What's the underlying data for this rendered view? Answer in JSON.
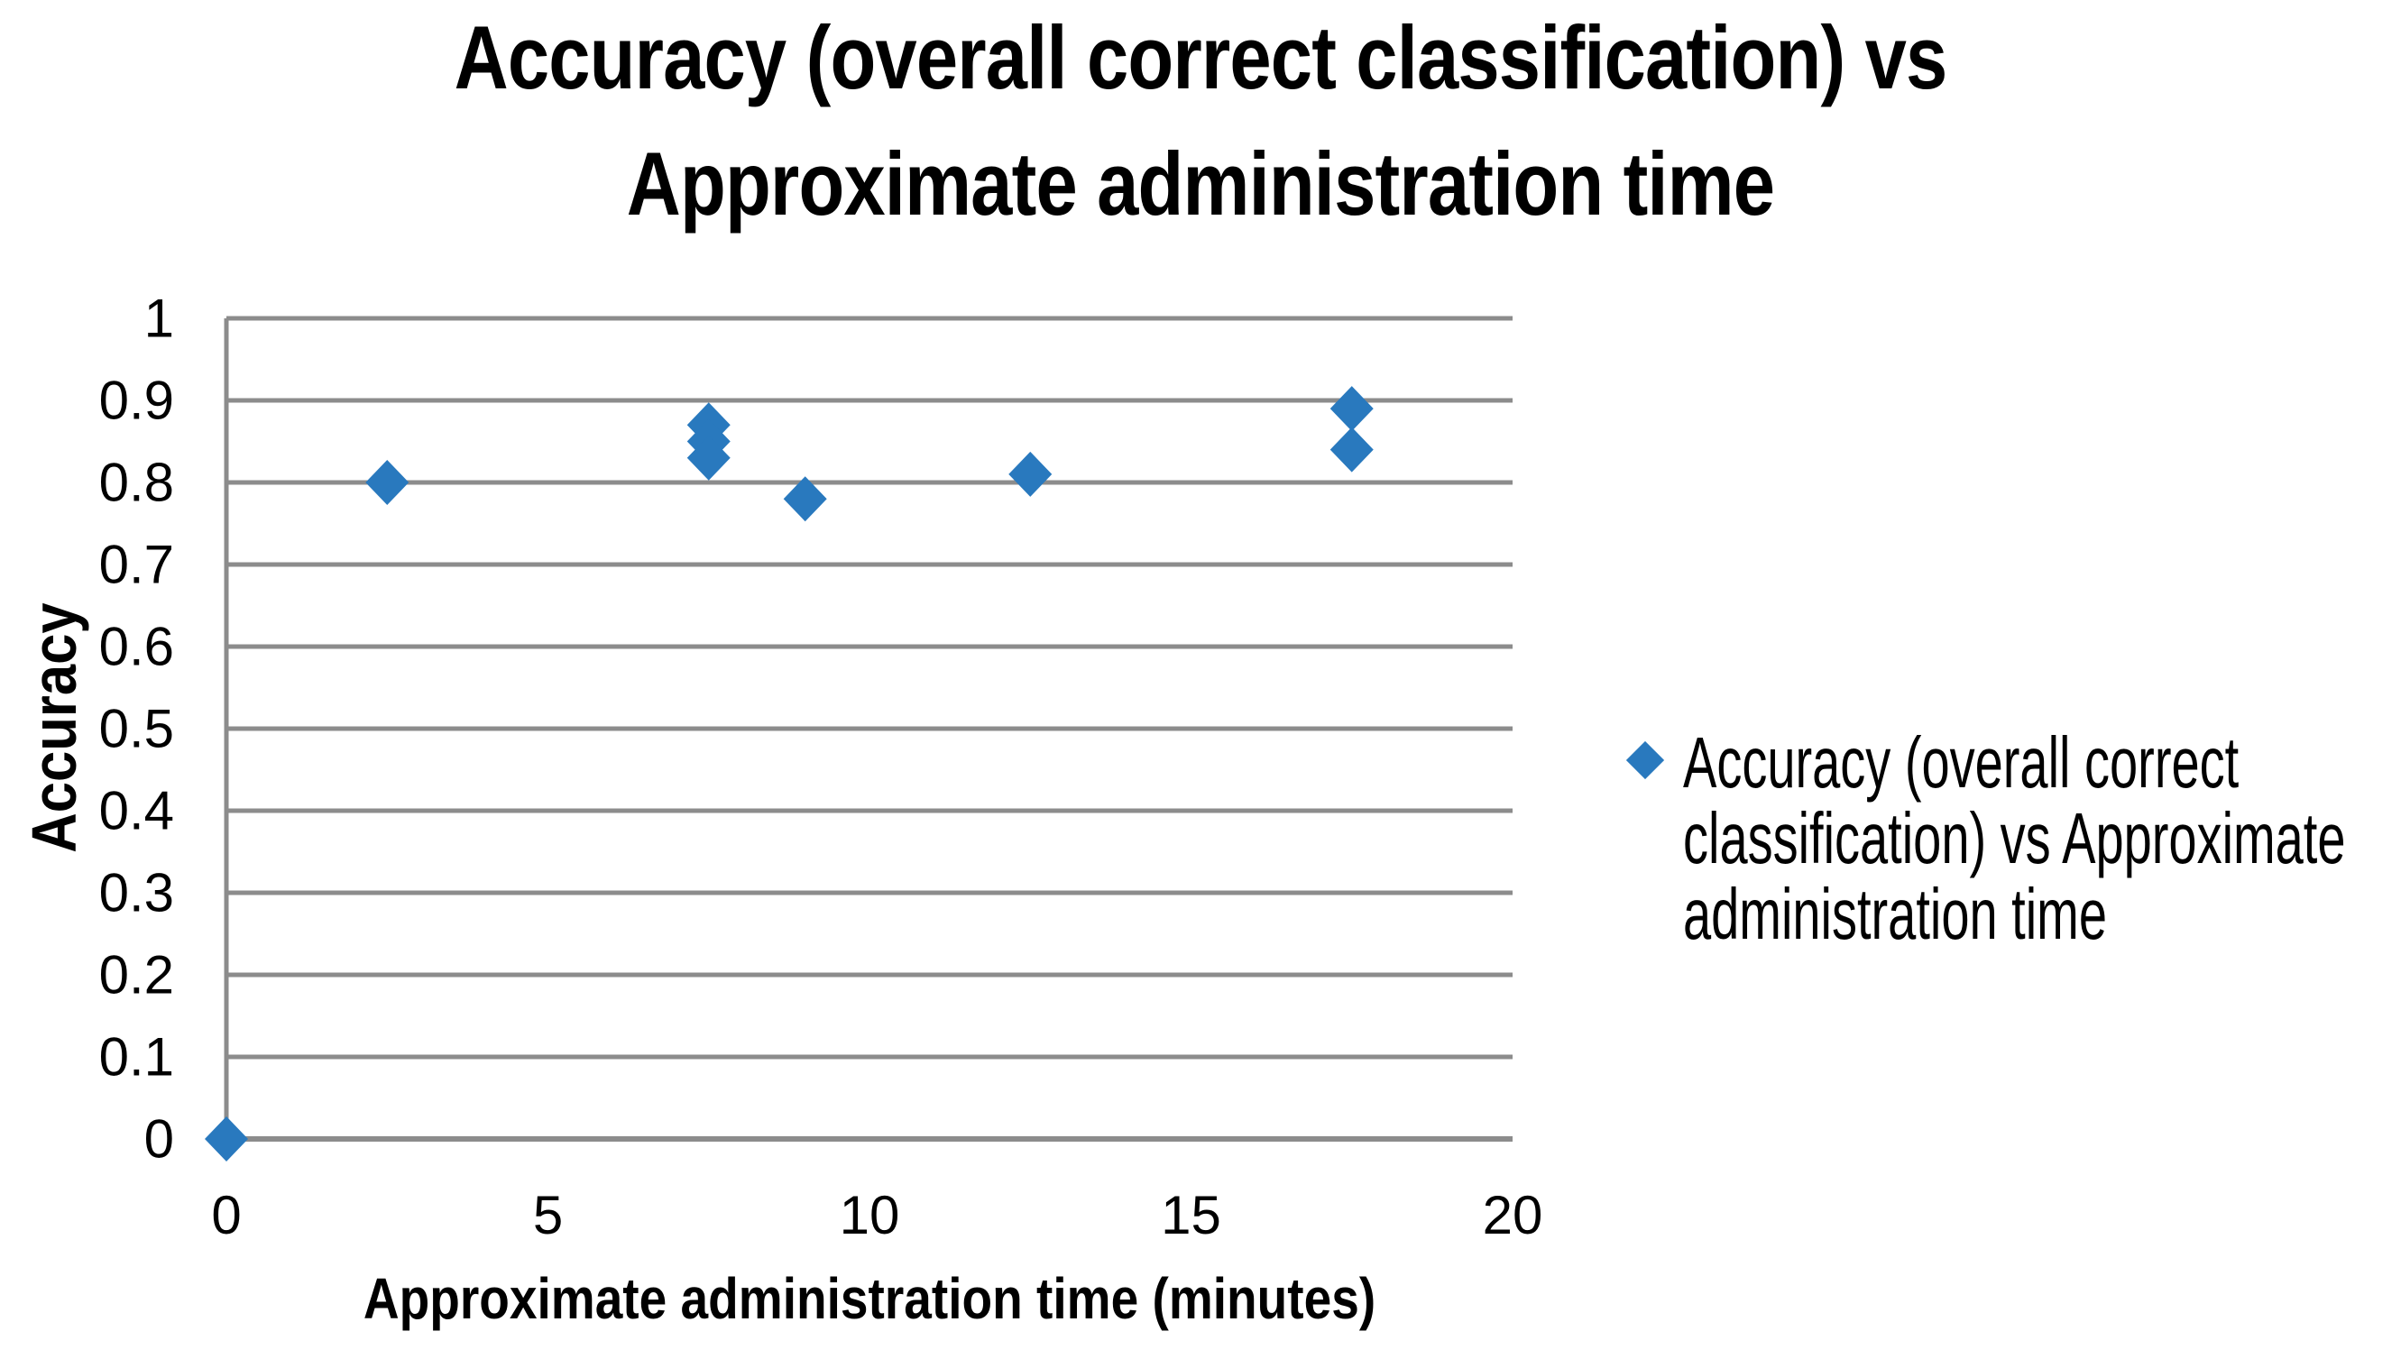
{
  "chart_data": {
    "type": "scatter",
    "title": "Accuracy (overall correct classification) vs Approximate administration time",
    "title_lines": [
      "Accuracy (overall correct classification) vs",
      "Approximate administration time"
    ],
    "xlabel": "Approximate administration time (minutes)",
    "ylabel": "Accuracy",
    "xlim": [
      0,
      20
    ],
    "ylim": [
      0,
      1
    ],
    "x_ticks": [
      0,
      5,
      10,
      15,
      20
    ],
    "x_tick_labels": [
      "0",
      "5",
      "10",
      "15",
      "20"
    ],
    "y_ticks": [
      0,
      0.1,
      0.2,
      0.3,
      0.4,
      0.5,
      0.6,
      0.7,
      0.8,
      0.9,
      1
    ],
    "y_tick_labels": [
      "0",
      "0.1",
      "0.2",
      "0.3",
      "0.4",
      "0.5",
      "0.6",
      "0.7",
      "0.8",
      "0.9",
      "1"
    ],
    "grid": {
      "horizontal": true,
      "vertical": false
    },
    "legend": {
      "position": "right",
      "marker": "diamond",
      "label": "Accuracy (overall correct classification) vs Approximate administration time",
      "lines": [
        "Accuracy (overall correct",
        "classification) vs Approximate",
        "administration time"
      ]
    },
    "series": [
      {
        "name": "Accuracy (overall correct classification) vs Approximate administration time",
        "marker": "diamond",
        "color": "#2979BE",
        "points": [
          [
            0,
            0
          ],
          [
            2.5,
            0.8
          ],
          [
            7.5,
            0.87
          ],
          [
            7.5,
            0.85
          ],
          [
            7.5,
            0.83
          ],
          [
            9,
            0.78
          ],
          [
            12.5,
            0.81
          ],
          [
            17.5,
            0.89
          ],
          [
            17.5,
            0.84
          ]
        ]
      }
    ]
  },
  "colors": {
    "marker_blue": "#2979BE",
    "gridline_gray": "#8C8C8C",
    "axis_gray": "#8C8C8C",
    "text_black": "#000000",
    "background": "#FFFFFF"
  }
}
